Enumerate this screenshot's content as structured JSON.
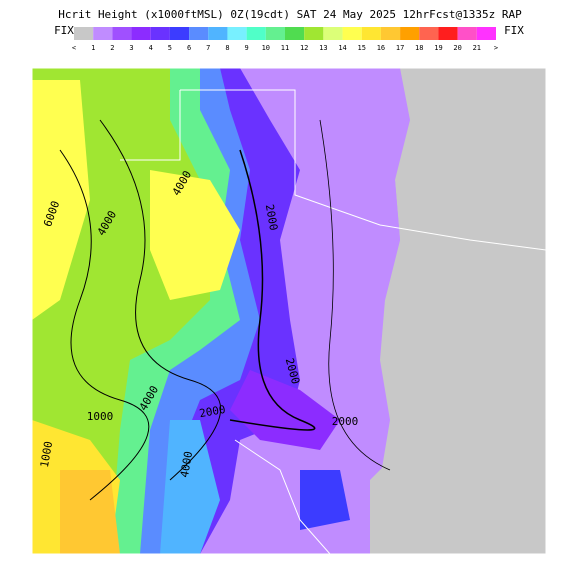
{
  "header": {
    "title": "Hcrit Height (x1000ftMSL) 0Z(19cdt) SAT 24 May 2025 12hrFcst@1335z RAP"
  },
  "legend": {
    "left_label": "FIX",
    "right_label": "FIX",
    "ticks": [
      "<",
      "1",
      "2",
      "3",
      "4",
      "5",
      "6",
      "7",
      "8",
      "9",
      "10",
      "11",
      "12",
      "13",
      "14",
      "15",
      "16",
      "17",
      "18",
      "19",
      "20",
      "21",
      ">"
    ],
    "colors": [
      "#c8c8c8",
      "#c08cff",
      "#a050ff",
      "#8c2cff",
      "#6a32ff",
      "#3c3cff",
      "#5a8cff",
      "#50b4ff",
      "#78f0ff",
      "#50ffc8",
      "#64f090",
      "#50dc50",
      "#a0e632",
      "#dcff78",
      "#ffff50",
      "#ffe632",
      "#ffc832",
      "#ffa000",
      "#ff6450",
      "#ff1e1e",
      "#ff50c8",
      "#ff32ff"
    ]
  },
  "map": {
    "contour_labels": [
      "6000",
      "4000",
      "4000",
      "2000",
      "2000",
      "1000",
      "4000",
      "2000",
      "2000",
      "1000",
      "4000"
    ]
  }
}
